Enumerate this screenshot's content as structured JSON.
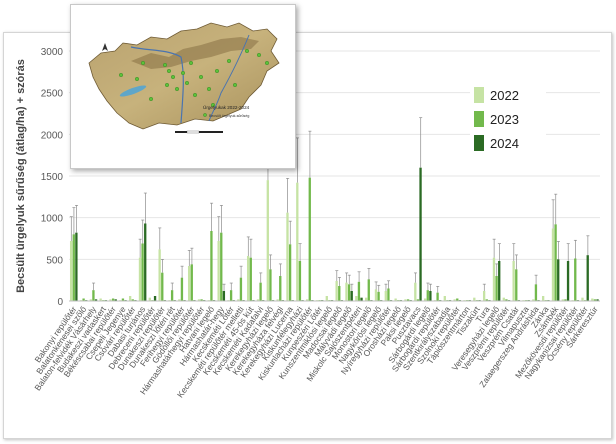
{
  "colors": {
    "s2022": "#c6e3a4",
    "s2023": "#72b94c",
    "s2024": "#2b6b24",
    "grid": "#e6e6e6",
    "axis_text": "#595959",
    "error_bar": "#8c8c8c"
  },
  "inset_map": {
    "legend_title": "Ürgelyukak 2022-2024",
    "legend_item": "Becsült ürgelyuk-sűrűség"
  },
  "chart_data": {
    "type": "bar",
    "ylabel": "Becsült ürgelyuk sűrűség (átlag/ha) + szórás",
    "ylim": [
      0,
      3000
    ],
    "yticks": [
      0,
      500,
      1000,
      1500,
      2000,
      2500,
      3000
    ],
    "grid": true,
    "legend_position": "top-right",
    "categories": [
      "Bakonyi repülőtér",
      "Balatonkenesei szőlő",
      "Balaton-felvidék Vásárhely",
      "Budakeszi vadaskert",
      "Békéscsabai repülőtér",
      "Csepeli Jegenye",
      "Csóvári repülőtér",
      "Dabasi turjános",
      "Debreceni repülőtér",
      "Dunakeszi repülőtér",
      "Dunakeszi lőtéri rét",
      "Ferihegyi repülőtér",
      "Gödöllői repülőtér",
      "Hármashatárhegyi repülőtér",
      "Hatvani legelő",
      "Hármashatár-hegy",
      "Kecskeméti Lőtér",
      "Kecskeméti repülőtér melletti",
      "Kecskeméti 45-ös kút",
      "Kecskeméti Kadafalvi",
      "Kerekegyházi legelő",
      "Kerekegyháza felvégi",
      "Kerekegyházi Lucerna",
      "Kiskunfélegyházi",
      "Kiskunlacházi repülőtér",
      "Kunpeszéri Lőtér",
      "Kunszentmiklósi legelő",
      "Madocsai legelő",
      "Mályvádi legelő",
      "Miskolc Sajószentpéteri",
      "Monostori legelő",
      "Nagykőrösi legelő",
      "Nyíregyházi repülőtér",
      "Orosházi legelő",
      "Paksi legelő",
      "Pusztavacs",
      "Sárbogárdi legelő",
      "Sárbogárdi repülőtér",
      "Szentkirályszabadja",
      "Szolnoki repülőtér",
      "Tápiószentmárton",
      "Tiszakürt",
      "Tura",
      "Veresegyházi legelő",
      "Veszprémi repülőtér",
      "Veszprém Csatár",
      "Vilmapuszta",
      "Zalaegerszeg Andráshida",
      "Zánka",
      "Zsámbék",
      "Mezőkövesdi repülőtér",
      "Nagykanizsai repülőtér",
      "Őcsény repülőtér",
      "Sárkeresztúr"
    ],
    "series": [
      {
        "name": "2022",
        "values": [
          720,
          10,
          20,
          30,
          20,
          10,
          60,
          520,
          40,
          620,
          10,
          20,
          420,
          20,
          10,
          720,
          10,
          20,
          540,
          20,
          1450,
          20,
          1060,
          1420,
          20,
          10,
          60,
          240,
          220,
          60,
          40,
          140,
          120,
          30,
          20,
          220,
          30,
          10,
          60,
          20,
          10,
          40,
          120,
          520,
          40,
          480,
          10,
          20,
          60,
          870,
          20,
          10,
          40,
          30
        ]
      },
      {
        "name": "2023",
        "values": [
          800,
          30,
          130,
          10,
          30,
          30,
          20,
          690,
          10,
          340,
          130,
          280,
          440,
          20,
          840,
          820,
          130,
          280,
          520,
          220,
          380,
          300,
          680,
          480,
          1480,
          10,
          10,
          180,
          200,
          230,
          260,
          110,
          150,
          10,
          20,
          20,
          130,
          100,
          10,
          30,
          10,
          10,
          20,
          300,
          20,
          380,
          10,
          200,
          10,
          920,
          20,
          510,
          10,
          20
        ]
      },
      {
        "name": "2024",
        "values": [
          820,
          10,
          20,
          10,
          20,
          10,
          10,
          930,
          60,
          10,
          10,
          10,
          10,
          10,
          10,
          120,
          10,
          10,
          10,
          10,
          10,
          10,
          10,
          10,
          10,
          10,
          10,
          10,
          120,
          40,
          10,
          10,
          10,
          10,
          10,
          1600,
          120,
          10,
          10,
          10,
          10,
          10,
          10,
          480,
          10,
          10,
          10,
          10,
          10,
          500,
          480,
          10,
          550,
          20
        ]
      }
    ]
  }
}
